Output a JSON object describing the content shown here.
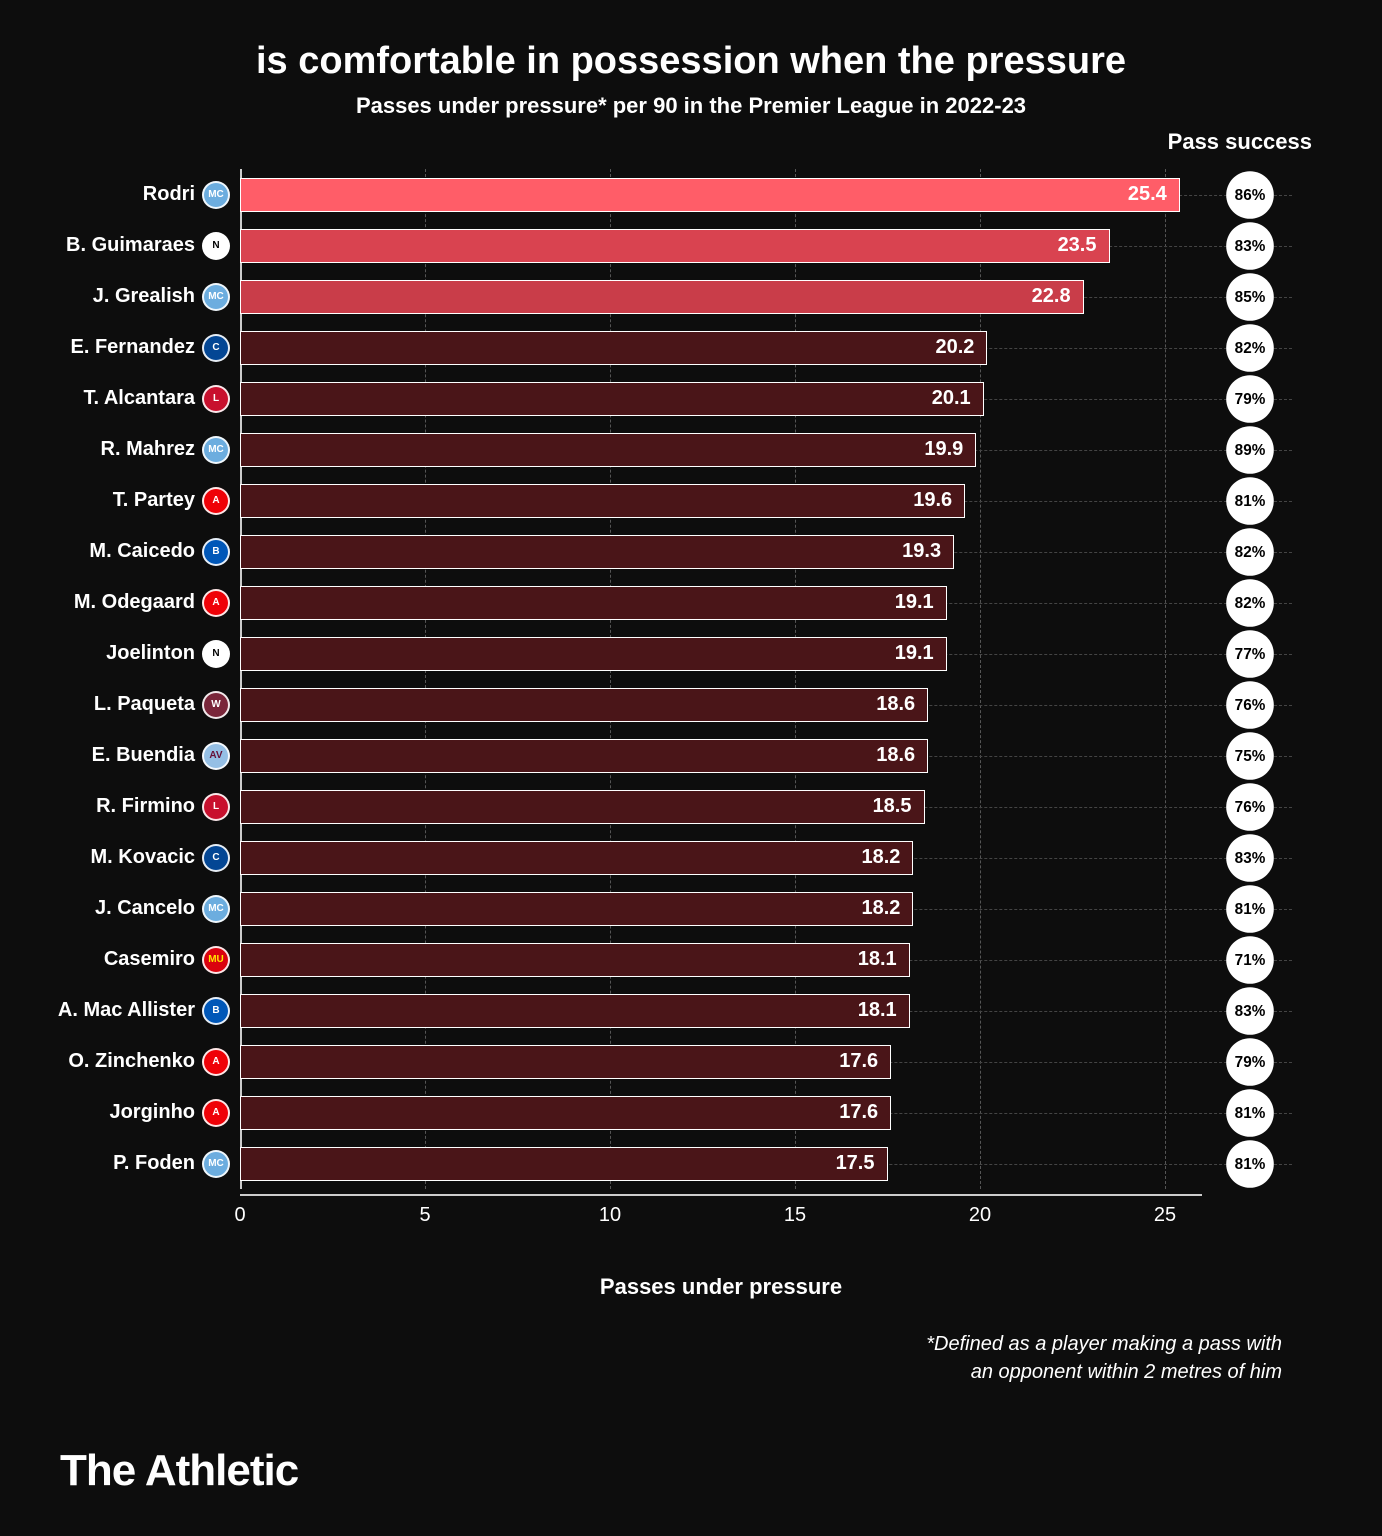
{
  "title": "is comfortable in possession when the pressure",
  "subtitle": "Passes under pressure* per 90 in the Premier League in 2022-23",
  "success_header": "Pass success",
  "xlabel": "Passes under pressure",
  "footnote_line1": "*Defined as a player making a pass with",
  "footnote_line2": "an opponent within 2 metres of him",
  "brand": "The Athletic",
  "chart": {
    "type": "bar",
    "xlim": [
      0,
      26
    ],
    "ticks": [
      0,
      5,
      10,
      15,
      20,
      25
    ],
    "bar_border": "#ffffff",
    "highlight_colors": [
      "#ff5d68",
      "#d94350",
      "#c93d49"
    ],
    "default_bar_color": "#4a1518",
    "background": "#0d0d0d",
    "grid_color": "#555555",
    "success_pill_bg": "#ffffff",
    "success_pill_text": "#000000"
  },
  "badges": {
    "mancity": {
      "bg": "#6caddf",
      "fg": "#ffffff",
      "text": "MC"
    },
    "newcastle": {
      "bg": "#ffffff",
      "fg": "#000000",
      "text": "N"
    },
    "chelsea": {
      "bg": "#034694",
      "fg": "#ffffff",
      "text": "C"
    },
    "liverpool": {
      "bg": "#c8102e",
      "fg": "#ffffff",
      "text": "L"
    },
    "arsenal": {
      "bg": "#ef0107",
      "fg": "#ffffff",
      "text": "A"
    },
    "brighton": {
      "bg": "#0057b8",
      "fg": "#ffffff",
      "text": "B"
    },
    "westham": {
      "bg": "#7a263a",
      "fg": "#ffffff",
      "text": "W"
    },
    "villa": {
      "bg": "#95bfe5",
      "fg": "#670e36",
      "text": "AV"
    },
    "manutd": {
      "bg": "#da020e",
      "fg": "#ffe500",
      "text": "MU"
    }
  },
  "players": [
    {
      "name": "Rodri",
      "team": "mancity",
      "value": 25.4,
      "success": "86%",
      "highlight": 0
    },
    {
      "name": "B. Guimaraes",
      "team": "newcastle",
      "value": 23.5,
      "success": "83%",
      "highlight": 1
    },
    {
      "name": "J. Grealish",
      "team": "mancity",
      "value": 22.8,
      "success": "85%",
      "highlight": 2
    },
    {
      "name": "E. Fernandez",
      "team": "chelsea",
      "value": 20.2,
      "success": "82%"
    },
    {
      "name": "T. Alcantara",
      "team": "liverpool",
      "value": 20.1,
      "success": "79%"
    },
    {
      "name": "R. Mahrez",
      "team": "mancity",
      "value": 19.9,
      "success": "89%"
    },
    {
      "name": "T. Partey",
      "team": "arsenal",
      "value": 19.6,
      "success": "81%"
    },
    {
      "name": "M. Caicedo",
      "team": "brighton",
      "value": 19.3,
      "success": "82%"
    },
    {
      "name": "M. Odegaard",
      "team": "arsenal",
      "value": 19.1,
      "success": "82%"
    },
    {
      "name": "Joelinton",
      "team": "newcastle",
      "value": 19.1,
      "success": "77%"
    },
    {
      "name": "L. Paqueta",
      "team": "westham",
      "value": 18.6,
      "success": "76%"
    },
    {
      "name": "E. Buendia",
      "team": "villa",
      "value": 18.6,
      "success": "75%"
    },
    {
      "name": "R. Firmino",
      "team": "liverpool",
      "value": 18.5,
      "success": "76%"
    },
    {
      "name": "M. Kovacic",
      "team": "chelsea",
      "value": 18.2,
      "success": "83%"
    },
    {
      "name": "J. Cancelo",
      "team": "mancity",
      "value": 18.2,
      "success": "81%"
    },
    {
      "name": "Casemiro",
      "team": "manutd",
      "value": 18.1,
      "success": "71%"
    },
    {
      "name": "A. Mac Allister",
      "team": "brighton",
      "value": 18.1,
      "success": "83%"
    },
    {
      "name": "O. Zinchenko",
      "team": "arsenal",
      "value": 17.6,
      "success": "79%"
    },
    {
      "name": "Jorginho",
      "team": "arsenal",
      "value": 17.6,
      "success": "81%"
    },
    {
      "name": "P. Foden",
      "team": "mancity",
      "value": 17.5,
      "success": "81%"
    }
  ],
  "tick_labels": {
    "0": "0",
    "1": "5",
    "2": "10",
    "3": "15",
    "4": "20",
    "5": "25"
  }
}
